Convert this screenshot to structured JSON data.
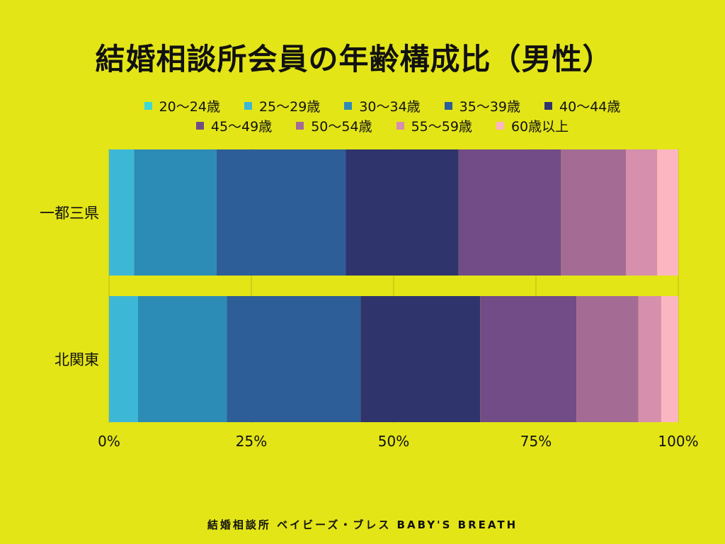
{
  "chart_data": {
    "type": "bar",
    "orientation": "horizontal",
    "stacked": true,
    "title": "結婚相談所会員の年齢構成比（男性）",
    "categories": [
      "一都三県",
      "北関東"
    ],
    "series": [
      {
        "name": "20〜24歳",
        "color": "#3fd8d8",
        "values": [
          0.0,
          0.0
        ]
      },
      {
        "name": "25〜29歳",
        "color": "#3db7d6",
        "values": [
          4.4,
          5.1
        ]
      },
      {
        "name": "30〜34歳",
        "color": "#2d8cb6",
        "values": [
          14.5,
          15.6
        ]
      },
      {
        "name": "35〜39歳",
        "color": "#2e5e97",
        "values": [
          22.7,
          23.5
        ]
      },
      {
        "name": "40〜44歳",
        "color": "#30346c",
        "values": [
          19.8,
          21.0
        ]
      },
      {
        "name": "45〜49歳",
        "color": "#724c86",
        "values": [
          18.0,
          16.9
        ]
      },
      {
        "name": "50〜54歳",
        "color": "#a46c95",
        "values": [
          11.4,
          10.9
        ]
      },
      {
        "name": "55〜59歳",
        "color": "#d68fac",
        "values": [
          5.5,
          4.0
        ]
      },
      {
        "name": "60歳以上",
        "color": "#fbb6c1",
        "values": [
          3.7,
          3.0
        ]
      }
    ],
    "x_ticks": [
      "0%",
      "25%",
      "50%",
      "75%",
      "100%"
    ],
    "xlim": [
      0,
      100
    ],
    "legend": "top"
  },
  "footer": "結婚相談所 ベイビーズ・ブレス BABY'S BREATH"
}
